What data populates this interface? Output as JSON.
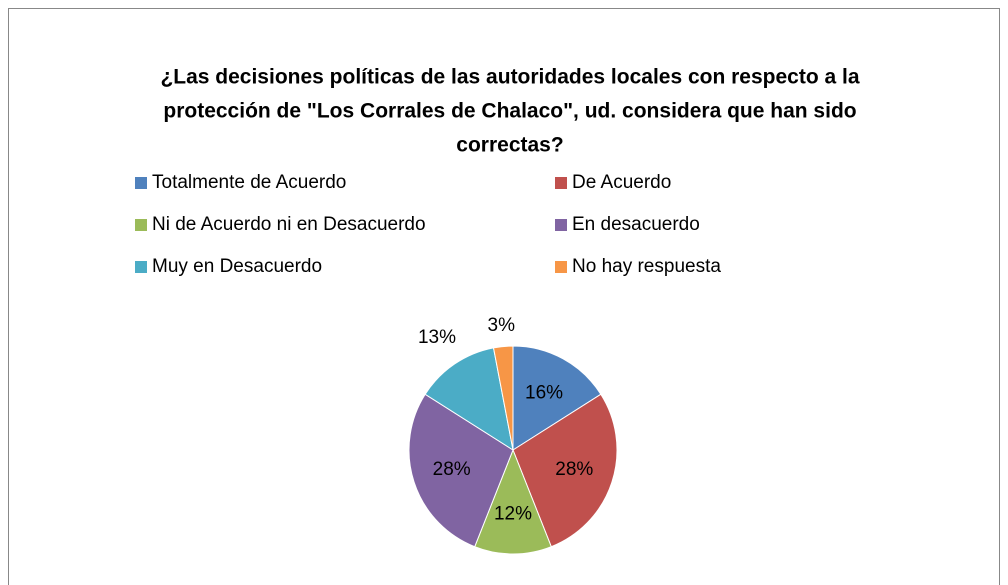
{
  "chart_data": {
    "type": "pie",
    "title_lines": [
      "¿Las decisiones políticas de las autoridades locales con respecto a la",
      "protección de \"Los Corrales de Chalaco\", ud. considera que han sido",
      "correctas?"
    ],
    "categories": [
      "Totalmente de Acuerdo",
      "De Acuerdo",
      "Ni de Acuerdo ni en Desacuerdo",
      "En desacuerdo",
      "Muy en Desacuerdo",
      "No hay respuesta"
    ],
    "values": [
      16,
      28,
      12,
      28,
      13,
      3
    ],
    "value_labels": [
      "16%",
      "28%",
      "12%",
      "28%",
      "13%",
      "3%"
    ],
    "colors": [
      "#4f81bd",
      "#c0504d",
      "#9bbb59",
      "#8064a2",
      "#4bacc6",
      "#f79646"
    ]
  }
}
